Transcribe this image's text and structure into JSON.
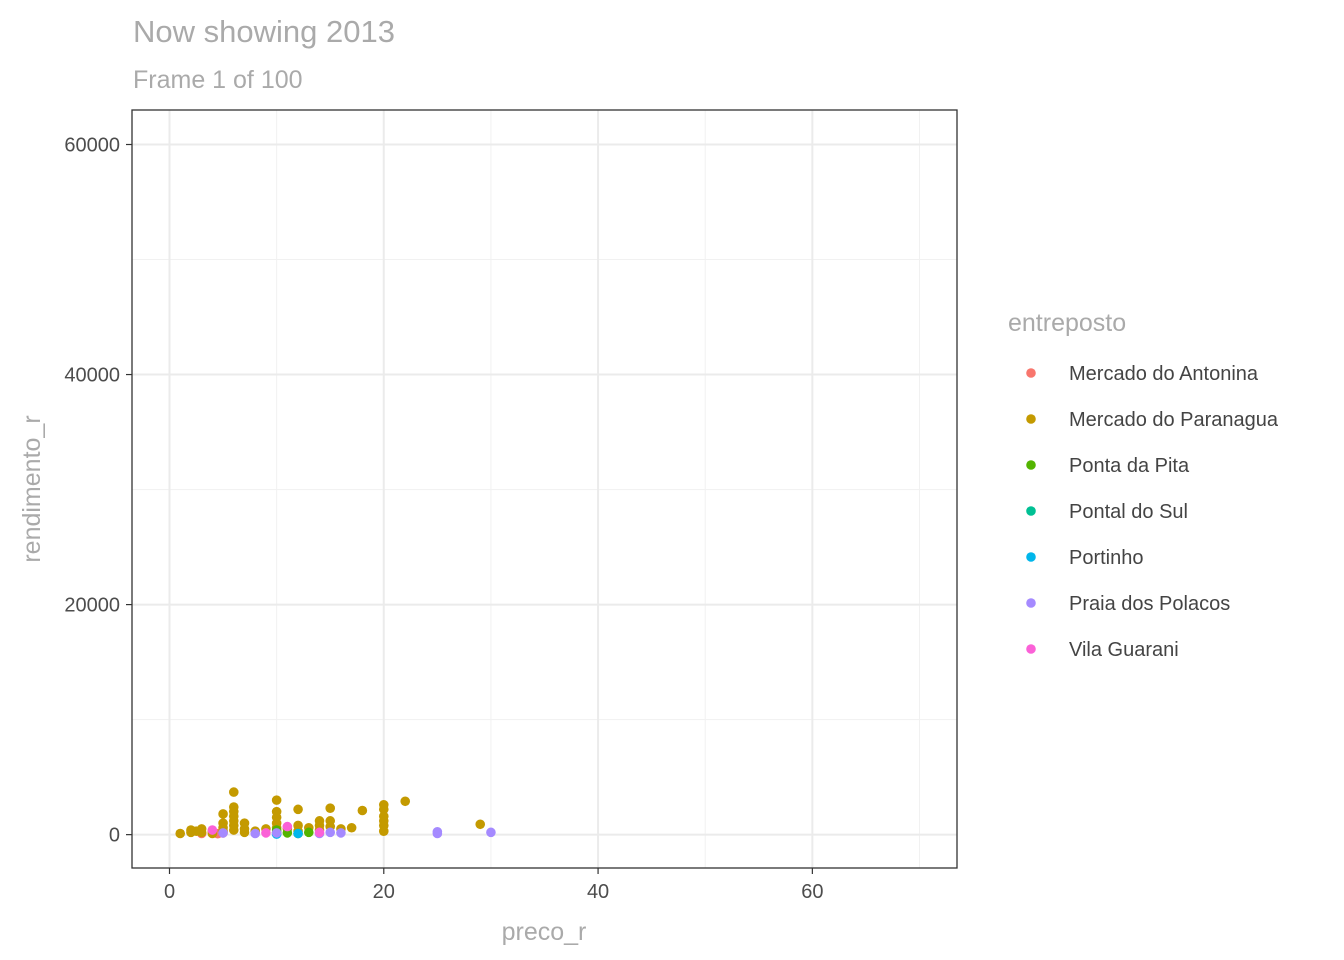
{
  "chart_data": {
    "type": "scatter",
    "title": "Now showing 2013",
    "subtitle": "Frame 1 of 100",
    "xlabel": "preco_r",
    "ylabel": "rendimento_r",
    "xlim": [
      -3.5,
      73.5
    ],
    "ylim": [
      -2900,
      63000
    ],
    "x_ticks": [
      0,
      20,
      40,
      60
    ],
    "x_minor_ticks": [
      10,
      30,
      50,
      70
    ],
    "y_ticks": [
      0,
      20000,
      40000,
      60000
    ],
    "y_minor_ticks": [
      10000,
      30000,
      50000
    ],
    "grid": true,
    "legend": {
      "title": "entreposto",
      "position": "right"
    },
    "series": [
      {
        "name": "Mercado do Antonina",
        "color": "#F8766D",
        "points": [
          [
            3,
            100
          ],
          [
            4,
            200
          ],
          [
            4.5,
            80
          ],
          [
            5,
            150
          ]
        ]
      },
      {
        "name": "Mercado do Paranagua",
        "color": "#C49A00",
        "points": [
          [
            1,
            100
          ],
          [
            2,
            200
          ],
          [
            2,
            400
          ],
          [
            2.5,
            300
          ],
          [
            3,
            500
          ],
          [
            3,
            200
          ],
          [
            4,
            300
          ],
          [
            4,
            100
          ],
          [
            5,
            600
          ],
          [
            5,
            1000
          ],
          [
            5,
            1800
          ],
          [
            5,
            300
          ],
          [
            6,
            3700
          ],
          [
            6,
            2400
          ],
          [
            6,
            2000
          ],
          [
            6,
            1600
          ],
          [
            6,
            1200
          ],
          [
            6,
            800
          ],
          [
            6,
            400
          ],
          [
            7,
            1000
          ],
          [
            7,
            500
          ],
          [
            7,
            200
          ],
          [
            8,
            300
          ],
          [
            9,
            500
          ],
          [
            10,
            3000
          ],
          [
            10,
            2000
          ],
          [
            10,
            1500
          ],
          [
            10,
            1000
          ],
          [
            10,
            600
          ],
          [
            10,
            200
          ],
          [
            11,
            500
          ],
          [
            12,
            2200
          ],
          [
            12,
            800
          ],
          [
            12,
            300
          ],
          [
            13,
            600
          ],
          [
            14,
            1200
          ],
          [
            14,
            800
          ],
          [
            14,
            400
          ],
          [
            15,
            2300
          ],
          [
            15,
            1200
          ],
          [
            15,
            700
          ],
          [
            16,
            500
          ],
          [
            17,
            600
          ],
          [
            18,
            2100
          ],
          [
            20,
            2600
          ],
          [
            20,
            2200
          ],
          [
            20,
            1600
          ],
          [
            20,
            1200
          ],
          [
            20,
            800
          ],
          [
            20,
            300
          ],
          [
            22,
            2900
          ],
          [
            29,
            900
          ]
        ]
      },
      {
        "name": "Ponta da Pita",
        "color": "#53B400",
        "points": [
          [
            10,
            200
          ],
          [
            10,
            400
          ],
          [
            11,
            150
          ],
          [
            12,
            100
          ],
          [
            13,
            200
          ]
        ]
      },
      {
        "name": "Pontal do Sul",
        "color": "#00C094",
        "points": [
          [
            10,
            100
          ]
        ]
      },
      {
        "name": "Portinho",
        "color": "#00B6EB",
        "points": [
          [
            10,
            50
          ],
          [
            12,
            100
          ]
        ]
      },
      {
        "name": "Praia dos Polacos",
        "color": "#A58AFF",
        "points": [
          [
            5,
            150
          ],
          [
            8,
            100
          ],
          [
            10,
            150
          ],
          [
            14,
            100
          ],
          [
            15,
            200
          ],
          [
            16,
            150
          ],
          [
            25,
            100
          ],
          [
            25,
            250
          ],
          [
            30,
            200
          ]
        ]
      },
      {
        "name": "Vila Guarani",
        "color": "#FB61D7",
        "points": [
          [
            4,
            400
          ],
          [
            9,
            150
          ],
          [
            11,
            700
          ],
          [
            14,
            200
          ]
        ]
      }
    ]
  }
}
